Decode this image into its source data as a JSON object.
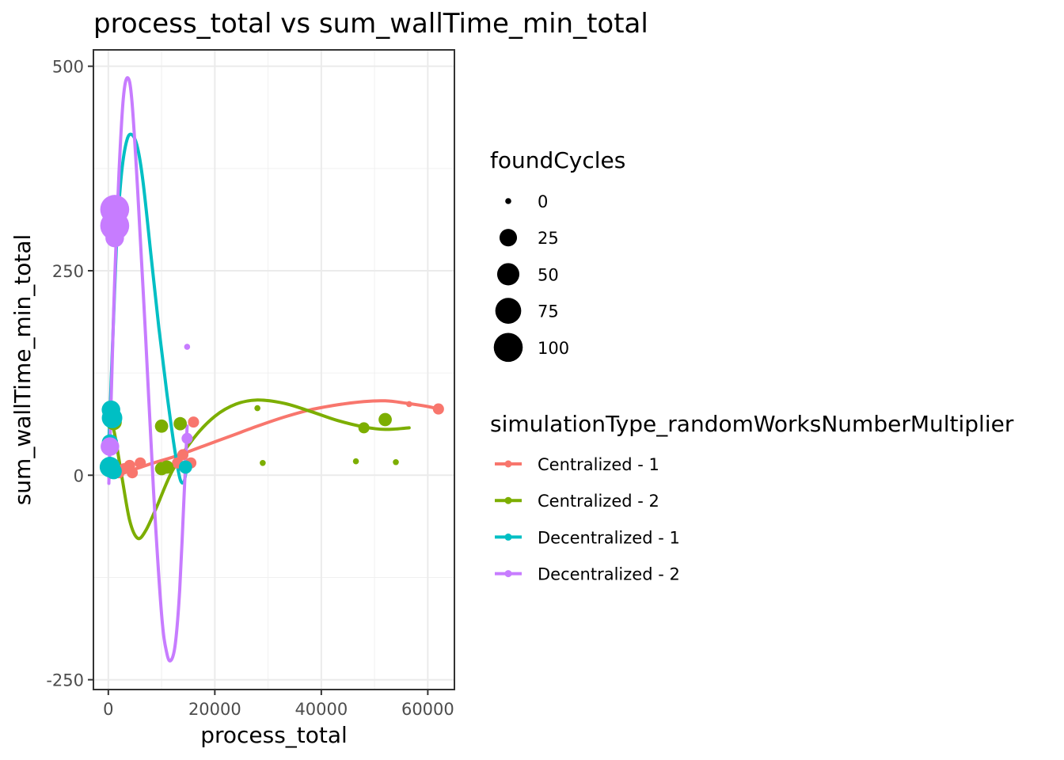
{
  "chart_data": {
    "type": "scatter",
    "title": "process_total  vs  sum_wallTime_min_total",
    "xlabel": "process_total",
    "ylabel": "sum_wallTime_min_total",
    "xlim": [
      -2800,
      65000
    ],
    "ylim": [
      -262,
      520
    ],
    "x_ticks": [
      0,
      20000,
      40000,
      60000
    ],
    "x_tick_labels": [
      "0",
      "20000",
      "40000",
      "60000"
    ],
    "y_ticks": [
      500,
      250,
      0,
      -250
    ],
    "y_tick_labels": [
      "500",
      "250",
      "0",
      "-250"
    ],
    "grid": true,
    "legend_position": "right",
    "size_legend": {
      "title": "foundCycles",
      "entries": [
        {
          "label": "0",
          "value": 0
        },
        {
          "label": "25",
          "value": 25
        },
        {
          "label": "50",
          "value": 50
        },
        {
          "label": "75",
          "value": 75
        },
        {
          "label": "100",
          "value": 100
        }
      ]
    },
    "color_legend": {
      "title": "simulationType_randomWorksNumberMultiplier"
    },
    "series": [
      {
        "name": "Centralized - 1",
        "color": "#F8766D",
        "points": [
          {
            "x": 500,
            "y": 5,
            "size": 5
          },
          {
            "x": 1200,
            "y": 10,
            "size": 5
          },
          {
            "x": 2000,
            "y": 3,
            "size": 5
          },
          {
            "x": 3000,
            "y": 8,
            "size": 5
          },
          {
            "x": 4000,
            "y": 12,
            "size": 5
          },
          {
            "x": 4500,
            "y": 3,
            "size": 5
          },
          {
            "x": 6000,
            "y": 15,
            "size": 5
          },
          {
            "x": 13000,
            "y": 15,
            "size": 5
          },
          {
            "x": 14000,
            "y": 25,
            "size": 5
          },
          {
            "x": 15500,
            "y": 15,
            "size": 5
          },
          {
            "x": 16000,
            "y": 65,
            "size": 5
          },
          {
            "x": 56500,
            "y": 87,
            "size": 0
          },
          {
            "x": 62000,
            "y": 81,
            "size": 5
          }
        ],
        "smooth": [
          {
            "x": 100,
            "y": -3
          },
          {
            "x": 3000,
            "y": 3
          },
          {
            "x": 8000,
            "y": 14
          },
          {
            "x": 13000,
            "y": 24
          },
          {
            "x": 18000,
            "y": 36
          },
          {
            "x": 23000,
            "y": 48
          },
          {
            "x": 28000,
            "y": 60
          },
          {
            "x": 33000,
            "y": 71
          },
          {
            "x": 38000,
            "y": 80
          },
          {
            "x": 43000,
            "y": 86
          },
          {
            "x": 48000,
            "y": 90
          },
          {
            "x": 52000,
            "y": 91
          },
          {
            "x": 56000,
            "y": 88
          },
          {
            "x": 60000,
            "y": 84
          },
          {
            "x": 62000,
            "y": 81
          }
        ]
      },
      {
        "name": "Centralized - 2",
        "color": "#7CAE00",
        "points": [
          {
            "x": 1000,
            "y": 65,
            "size": 20
          },
          {
            "x": 10000,
            "y": 60,
            "size": 10
          },
          {
            "x": 10000,
            "y": 8,
            "size": 10
          },
          {
            "x": 11000,
            "y": 10,
            "size": 10
          },
          {
            "x": 13500,
            "y": 63,
            "size": 10
          },
          {
            "x": 28000,
            "y": 82,
            "size": 0
          },
          {
            "x": 29000,
            "y": 15,
            "size": 0
          },
          {
            "x": 46500,
            "y": 17,
            "size": 0
          },
          {
            "x": 48000,
            "y": 58,
            "size": 5
          },
          {
            "x": 52000,
            "y": 68,
            "size": 10
          },
          {
            "x": 54000,
            "y": 16,
            "size": 0
          }
        ],
        "smooth": [
          {
            "x": 100,
            "y": 80
          },
          {
            "x": 1200,
            "y": 50
          },
          {
            "x": 2500,
            "y": 0
          },
          {
            "x": 4000,
            "y": -55
          },
          {
            "x": 5500,
            "y": -77
          },
          {
            "x": 7000,
            "y": -68
          },
          {
            "x": 9000,
            "y": -40
          },
          {
            "x": 12000,
            "y": 5
          },
          {
            "x": 16000,
            "y": 45
          },
          {
            "x": 20000,
            "y": 72
          },
          {
            "x": 24000,
            "y": 87
          },
          {
            "x": 28000,
            "y": 92
          },
          {
            "x": 33000,
            "y": 88
          },
          {
            "x": 38000,
            "y": 78
          },
          {
            "x": 43000,
            "y": 67
          },
          {
            "x": 48000,
            "y": 59
          },
          {
            "x": 52000,
            "y": 56
          },
          {
            "x": 56500,
            "y": 58
          }
        ]
      },
      {
        "name": "Decentralized - 1",
        "color": "#00BFC4",
        "points": [
          {
            "x": 300,
            "y": 10,
            "size": 40
          },
          {
            "x": 500,
            "y": 80,
            "size": 30
          },
          {
            "x": 700,
            "y": 70,
            "size": 40
          },
          {
            "x": 300,
            "y": 40,
            "size": 20
          },
          {
            "x": 1000,
            "y": 5,
            "size": 20
          },
          {
            "x": 14500,
            "y": 10,
            "size": 10
          }
        ],
        "smooth": [
          {
            "x": 100,
            "y": 40
          },
          {
            "x": 800,
            "y": 160
          },
          {
            "x": 1600,
            "y": 290
          },
          {
            "x": 2500,
            "y": 370
          },
          {
            "x": 3500,
            "y": 410
          },
          {
            "x": 4500,
            "y": 416
          },
          {
            "x": 5500,
            "y": 400
          },
          {
            "x": 6500,
            "y": 360
          },
          {
            "x": 8000,
            "y": 270
          },
          {
            "x": 9500,
            "y": 180
          },
          {
            "x": 11000,
            "y": 100
          },
          {
            "x": 12500,
            "y": 30
          },
          {
            "x": 13500,
            "y": -5
          },
          {
            "x": 14200,
            "y": -8
          },
          {
            "x": 14600,
            "y": 5
          }
        ]
      },
      {
        "name": "Decentralized - 2",
        "color": "#C77CFF",
        "points": [
          {
            "x": 1200,
            "y": 325,
            "size": 100
          },
          {
            "x": 1200,
            "y": 305,
            "size": 100
          },
          {
            "x": 1200,
            "y": 290,
            "size": 30
          },
          {
            "x": 14800,
            "y": 157,
            "size": 0
          },
          {
            "x": 300,
            "y": 35,
            "size": 30
          },
          {
            "x": 14800,
            "y": 45,
            "size": 5
          }
        ],
        "smooth": [
          {
            "x": 100,
            "y": -10
          },
          {
            "x": 600,
            "y": 110
          },
          {
            "x": 1200,
            "y": 240
          },
          {
            "x": 2000,
            "y": 370
          },
          {
            "x": 2800,
            "y": 460
          },
          {
            "x": 3600,
            "y": 486
          },
          {
            "x": 4400,
            "y": 460
          },
          {
            "x": 5500,
            "y": 350
          },
          {
            "x": 7000,
            "y": 170
          },
          {
            "x": 8500,
            "y": -20
          },
          {
            "x": 10000,
            "y": -170
          },
          {
            "x": 11000,
            "y": -218
          },
          {
            "x": 11800,
            "y": -226
          },
          {
            "x": 12600,
            "y": -205
          },
          {
            "x": 13400,
            "y": -140
          },
          {
            "x": 14200,
            "y": -30
          },
          {
            "x": 14800,
            "y": 60
          }
        ]
      }
    ]
  }
}
